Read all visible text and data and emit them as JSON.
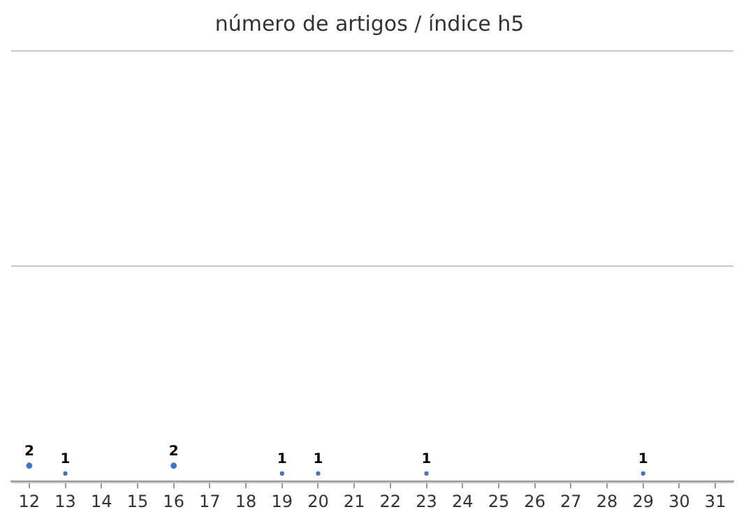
{
  "chart_data": {
    "type": "bubble",
    "title": "número de artigos / índice h5",
    "categories": [
      "12",
      "13",
      "14",
      "15",
      "16",
      "17",
      "18",
      "19",
      "20",
      "21",
      "22",
      "23",
      "24",
      "25",
      "26",
      "27",
      "28",
      "29",
      "30",
      "31"
    ],
    "series": [
      {
        "color": "#4472c4",
        "x": [
          "12",
          "13",
          "16",
          "19",
          "20",
          "23",
          "29"
        ],
        "values": [
          2,
          1,
          2,
          1,
          1,
          1,
          1
        ],
        "sizes": [
          1,
          0.5,
          1,
          0.5,
          0.5,
          0.5,
          0.5
        ]
      }
    ],
    "ylim": [
      0,
      55
    ],
    "yticks": [
      {
        "value": 0,
        "label": null
      },
      {
        "value": 27.5,
        "label": null
      },
      {
        "value": 55,
        "label": null
      }
    ],
    "tick_labels": "x",
    "grid": "y",
    "data_labels": true,
    "legend": false
  }
}
